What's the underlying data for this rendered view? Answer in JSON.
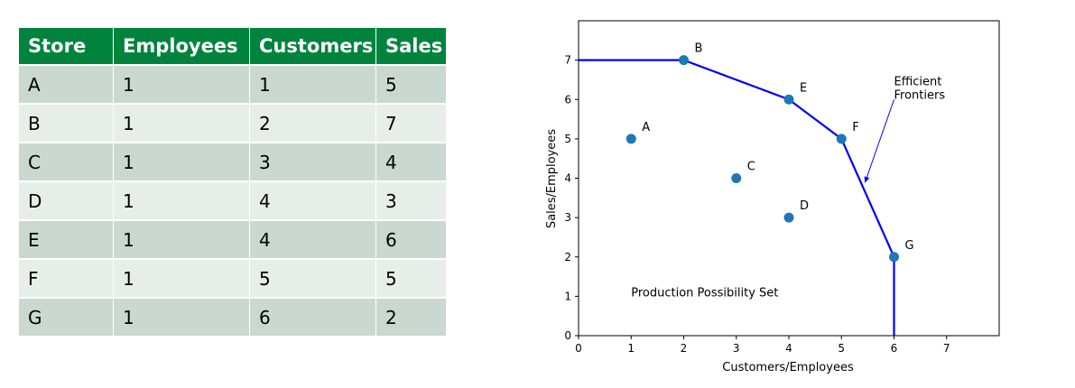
{
  "colors": {
    "header_bg": "#00843d",
    "row_dark": "#cbd8cf",
    "row_light": "#e7ede9",
    "point": "#1f77b4",
    "frontier": "#0000ff"
  },
  "table": {
    "headers": [
      "Store",
      "Employees",
      "Customers",
      "Sales"
    ],
    "rows": [
      [
        "A",
        "1",
        "1",
        "5"
      ],
      [
        "B",
        "1",
        "2",
        "7"
      ],
      [
        "C",
        "1",
        "3",
        "4"
      ],
      [
        "D",
        "1",
        "4",
        "3"
      ],
      [
        "E",
        "1",
        "4",
        "6"
      ],
      [
        "F",
        "1",
        "5",
        "5"
      ],
      [
        "G",
        "1",
        "6",
        "2"
      ]
    ]
  },
  "chart_data": {
    "type": "scatter",
    "xlabel": "Customers/Employees",
    "ylabel": "Sales/Employees",
    "xlim": [
      0,
      8
    ],
    "ylim": [
      0,
      8
    ],
    "xticks": [
      0,
      1,
      2,
      3,
      4,
      5,
      6,
      7
    ],
    "yticks": [
      0,
      1,
      2,
      3,
      4,
      5,
      6,
      7
    ],
    "grid": false,
    "points": [
      {
        "label": "A",
        "x": 1,
        "y": 5
      },
      {
        "label": "B",
        "x": 2,
        "y": 7
      },
      {
        "label": "C",
        "x": 3,
        "y": 4
      },
      {
        "label": "D",
        "x": 4,
        "y": 3
      },
      {
        "label": "E",
        "x": 4,
        "y": 6
      },
      {
        "label": "F",
        "x": 5,
        "y": 5
      },
      {
        "label": "G",
        "x": 6,
        "y": 2
      }
    ],
    "frontier": [
      [
        0,
        7
      ],
      [
        2,
        7
      ],
      [
        4,
        6
      ],
      [
        5,
        5
      ],
      [
        6,
        2
      ],
      [
        6,
        0
      ]
    ],
    "annotations": {
      "frontier_label": [
        "Efficient",
        "Frontiers"
      ],
      "frontier_label_pos": [
        6,
        6
      ],
      "arrow_to": [
        5.45,
        3.9
      ],
      "region_label": "Production Possibility Set",
      "region_label_pos": [
        1,
        1
      ]
    }
  }
}
